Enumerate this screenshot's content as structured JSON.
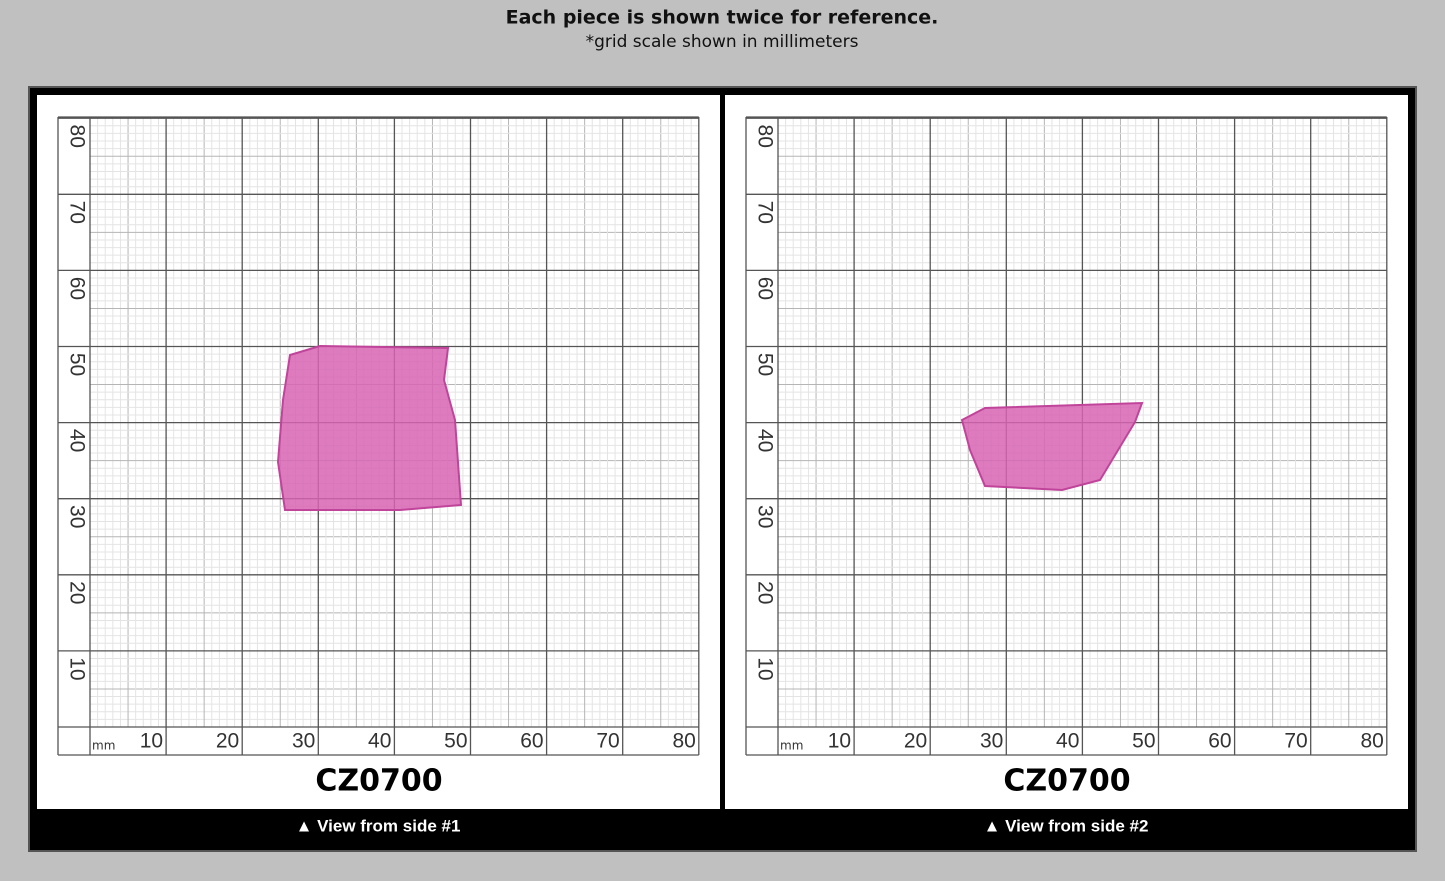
{
  "header": {
    "title": "Each piece is shown twice for reference.",
    "subtitle": "*grid scale shown in millimeters"
  },
  "panels": [
    {
      "label": "CZ0700",
      "caption": "▲ View from side #1",
      "unit": "mm",
      "x_ticks": [
        10,
        20,
        30,
        40,
        50,
        60,
        70,
        80
      ],
      "y_ticks": [
        10,
        20,
        30,
        40,
        50,
        60,
        70,
        80
      ]
    },
    {
      "label": "CZ0700",
      "caption": "▲ View from side #2",
      "unit": "mm",
      "x_ticks": [
        10,
        20,
        30,
        40,
        50,
        60,
        70,
        80
      ],
      "y_ticks": [
        10,
        20,
        30,
        40,
        50,
        60,
        70,
        80
      ]
    }
  ]
}
